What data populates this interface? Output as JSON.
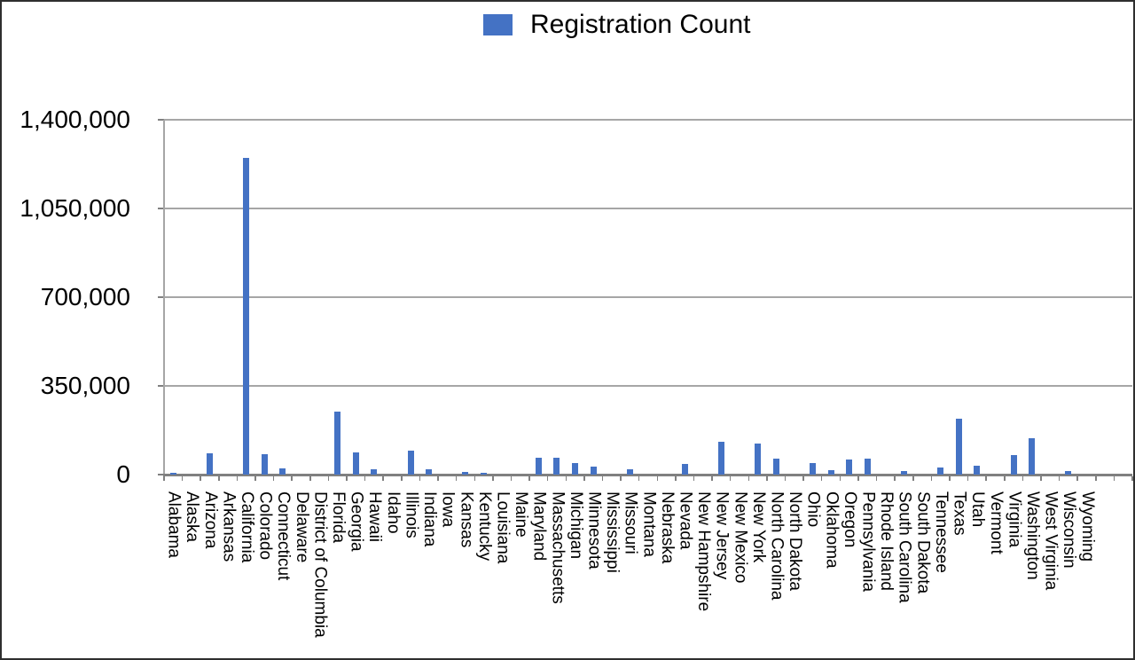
{
  "legend": {
    "label": "Registration Count",
    "swatch_color": "#4472C4"
  },
  "chart_data": {
    "type": "bar",
    "title": "",
    "series_name": "Registration Count",
    "categories": [
      "Alabama",
      "Alaska",
      "Arizona",
      "Arkansas",
      "California",
      "Colorado",
      "Connecticut",
      "Delaware",
      "District of Columbia",
      "Florida",
      "Georgia",
      "Hawaii",
      "Idaho",
      "Illinois",
      "Indiana",
      "Iowa",
      "Kansas",
      "Kentucky",
      "Louisiana",
      "Maine",
      "Maryland",
      "Massachusetts",
      "Michigan",
      "Minnesota",
      "Mississippi",
      "Missouri",
      "Montana",
      "Nebraska",
      "Nevada",
      "New Hampshire",
      "New Jersey",
      "New Mexico",
      "New York",
      "North Carolina",
      "North Dakota",
      "Ohio",
      "Oklahoma",
      "Oregon",
      "Pennsylvania",
      "Rhode Island",
      "South Carolina",
      "South Dakota",
      "Tennessee",
      "Texas",
      "Utah",
      "Vermont",
      "Virginia",
      "Washington",
      "West Virginia",
      "Wisconsin",
      "Wyoming"
    ],
    "values": [
      8000,
      0,
      84000,
      0,
      1250000,
      82000,
      26000,
      0,
      0,
      249000,
      87000,
      22000,
      0,
      93000,
      20000,
      0,
      9000,
      7000,
      0,
      0,
      65000,
      68000,
      46000,
      31000,
      0,
      20000,
      0,
      0,
      41000,
      0,
      129000,
      0,
      124000,
      62000,
      0,
      45000,
      17000,
      60000,
      64000,
      0,
      13000,
      0,
      27000,
      220000,
      36000,
      0,
      77000,
      144000,
      0,
      15000,
      0
    ],
    "xlabel": "",
    "ylabel": "",
    "ylim": [
      0,
      1400000
    ],
    "yticks": [
      0,
      350000,
      700000,
      1050000,
      1400000
    ],
    "ytick_labels": [
      "0",
      "350,000",
      "700,000",
      "1,050,000",
      "1,400,000"
    ],
    "grid": true,
    "legend_position": "top-center",
    "bar_color": "#4472C4",
    "gridline_color": "#a6a6a6",
    "axis_color": "#808080"
  }
}
